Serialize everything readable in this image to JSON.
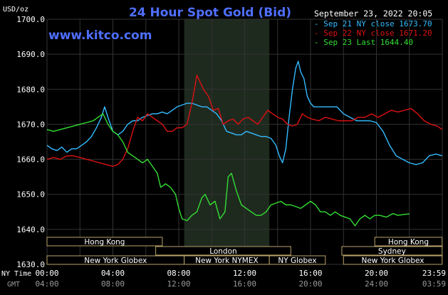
{
  "chart_data": {
    "type": "line",
    "title": "24 Hour Spot Gold (Bid)",
    "website": "www.kitco.com",
    "timestamp": "September 23, 2022 20:05",
    "y_unit": "USD/oz",
    "ylim": [
      1630,
      1700
    ],
    "y_ticks": [
      "1700.0",
      "1690.0",
      "1680.0",
      "1670.0",
      "1660.0",
      "1650.0",
      "1640.0",
      "1630.0"
    ],
    "x_range_hours": [
      0,
      24
    ],
    "x_label_ny": "NY Time",
    "x_label_gmt": "GMT",
    "x_ticks_ny": [
      "00:00",
      "04:00",
      "08:00",
      "12:00",
      "16:00",
      "20:00",
      "23:59"
    ],
    "x_ticks_gmt": [
      "04:00",
      "08:00",
      "12:00",
      "16:00",
      "20:00",
      "24:00",
      "03:59"
    ],
    "grid": true,
    "legend_position": "top-right",
    "shaded_session": {
      "start": 8.33,
      "end": 13.5,
      "color": "#1f2a1f"
    },
    "series": [
      {
        "name": "Sep 21 NY close 1673.70",
        "color": "#33bbff",
        "points": [
          [
            0,
            1664
          ],
          [
            0.3,
            1663
          ],
          [
            0.6,
            1662.5
          ],
          [
            0.9,
            1663.5
          ],
          [
            1.2,
            1662
          ],
          [
            1.5,
            1663
          ],
          [
            1.8,
            1663
          ],
          [
            2.1,
            1664
          ],
          [
            2.4,
            1665
          ],
          [
            2.7,
            1666.5
          ],
          [
            3.0,
            1669
          ],
          [
            3.3,
            1672
          ],
          [
            3.5,
            1675
          ],
          [
            3.7,
            1672
          ],
          [
            4.0,
            1668
          ],
          [
            4.3,
            1667
          ],
          [
            4.6,
            1668
          ],
          [
            4.9,
            1670
          ],
          [
            5.2,
            1671
          ],
          [
            5.5,
            1671
          ],
          [
            5.8,
            1672
          ],
          [
            6.1,
            1672.5
          ],
          [
            6.4,
            1673
          ],
          [
            6.7,
            1673
          ],
          [
            7.0,
            1673.5
          ],
          [
            7.3,
            1673
          ],
          [
            7.6,
            1674
          ],
          [
            7.9,
            1675
          ],
          [
            8.2,
            1675.5
          ],
          [
            8.5,
            1676
          ],
          [
            8.8,
            1676
          ],
          [
            9.1,
            1675.5
          ],
          [
            9.4,
            1675
          ],
          [
            9.7,
            1675
          ],
          [
            10.0,
            1674
          ],
          [
            10.3,
            1673
          ],
          [
            10.6,
            1671
          ],
          [
            10.9,
            1668
          ],
          [
            11.2,
            1667.5
          ],
          [
            11.5,
            1667
          ],
          [
            11.8,
            1667
          ],
          [
            12.1,
            1668
          ],
          [
            12.4,
            1667.5
          ],
          [
            12.7,
            1667
          ],
          [
            13.0,
            1666.5
          ],
          [
            13.3,
            1666.5
          ],
          [
            13.6,
            1666
          ],
          [
            13.9,
            1664
          ],
          [
            14.1,
            1661
          ],
          [
            14.3,
            1659
          ],
          [
            14.5,
            1663
          ],
          [
            14.7,
            1672
          ],
          [
            14.9,
            1680
          ],
          [
            15.1,
            1686
          ],
          [
            15.25,
            1688
          ],
          [
            15.4,
            1685
          ],
          [
            15.6,
            1683
          ],
          [
            15.8,
            1678
          ],
          [
            16.0,
            1676
          ],
          [
            16.2,
            1675
          ],
          [
            16.5,
            1675
          ],
          [
            16.8,
            1675
          ],
          [
            17.2,
            1675
          ],
          [
            17.6,
            1675
          ],
          [
            18.0,
            1673
          ],
          [
            18.4,
            1672
          ],
          [
            18.8,
            1671
          ],
          [
            19.2,
            1671
          ],
          [
            19.6,
            1671
          ],
          [
            20.0,
            1670.5
          ],
          [
            20.4,
            1668
          ],
          [
            20.8,
            1664
          ],
          [
            21.2,
            1661
          ],
          [
            21.6,
            1660
          ],
          [
            22.0,
            1659
          ],
          [
            22.4,
            1658.5
          ],
          [
            22.8,
            1659
          ],
          [
            23.2,
            1661
          ],
          [
            23.6,
            1661.5
          ],
          [
            23.99,
            1661
          ]
        ]
      },
      {
        "name": "Sep 22 NY close 1671.20",
        "color": "#dd1111",
        "points": [
          [
            0,
            1660
          ],
          [
            0.4,
            1660.5
          ],
          [
            0.8,
            1660
          ],
          [
            1.2,
            1661
          ],
          [
            1.6,
            1661
          ],
          [
            2.0,
            1660.5
          ],
          [
            2.4,
            1660
          ],
          [
            2.8,
            1659.5
          ],
          [
            3.2,
            1659
          ],
          [
            3.6,
            1658.5
          ],
          [
            4.0,
            1658
          ],
          [
            4.3,
            1658.5
          ],
          [
            4.6,
            1660
          ],
          [
            4.9,
            1663
          ],
          [
            5.2,
            1668
          ],
          [
            5.5,
            1672
          ],
          [
            5.8,
            1671
          ],
          [
            6.1,
            1673
          ],
          [
            6.4,
            1672
          ],
          [
            6.7,
            1671
          ],
          [
            7.0,
            1670
          ],
          [
            7.3,
            1668
          ],
          [
            7.6,
            1668
          ],
          [
            7.9,
            1669
          ],
          [
            8.2,
            1669
          ],
          [
            8.5,
            1670
          ],
          [
            8.8,
            1676
          ],
          [
            9.1,
            1684
          ],
          [
            9.3,
            1682
          ],
          [
            9.5,
            1680
          ],
          [
            9.8,
            1678
          ],
          [
            10.1,
            1674
          ],
          [
            10.4,
            1674.5
          ],
          [
            10.7,
            1670
          ],
          [
            11.0,
            1671
          ],
          [
            11.3,
            1671.5
          ],
          [
            11.6,
            1670
          ],
          [
            11.9,
            1671.5
          ],
          [
            12.2,
            1672
          ],
          [
            12.5,
            1671
          ],
          [
            12.8,
            1670
          ],
          [
            13.1,
            1672
          ],
          [
            13.4,
            1674
          ],
          [
            13.7,
            1673
          ],
          [
            14.0,
            1672
          ],
          [
            14.3,
            1671.5
          ],
          [
            14.6,
            1670
          ],
          [
            14.9,
            1669.5
          ],
          [
            15.2,
            1670
          ],
          [
            15.5,
            1673
          ],
          [
            15.8,
            1672
          ],
          [
            16.1,
            1671.5
          ],
          [
            16.5,
            1671
          ],
          [
            16.9,
            1672
          ],
          [
            17.3,
            1671.5
          ],
          [
            17.7,
            1671
          ],
          [
            18.1,
            1671
          ],
          [
            18.5,
            1671
          ],
          [
            18.9,
            1672
          ],
          [
            19.3,
            1672
          ],
          [
            19.7,
            1673
          ],
          [
            20.1,
            1672
          ],
          [
            20.5,
            1673
          ],
          [
            20.9,
            1674
          ],
          [
            21.3,
            1673.5
          ],
          [
            21.7,
            1674
          ],
          [
            22.1,
            1674.5
          ],
          [
            22.5,
            1673
          ],
          [
            22.9,
            1671
          ],
          [
            23.3,
            1670
          ],
          [
            23.7,
            1669.5
          ],
          [
            23.99,
            1668.5
          ]
        ]
      },
      {
        "name": "Sep 23 Last 1644.40",
        "color": "#33dd33",
        "points": [
          [
            0,
            1668.5
          ],
          [
            0.4,
            1668
          ],
          [
            0.8,
            1668.5
          ],
          [
            1.2,
            1669
          ],
          [
            1.6,
            1669.5
          ],
          [
            2.0,
            1670
          ],
          [
            2.4,
            1670.5
          ],
          [
            2.8,
            1671
          ],
          [
            3.1,
            1672
          ],
          [
            3.4,
            1673
          ],
          [
            3.7,
            1670
          ],
          [
            4.0,
            1668
          ],
          [
            4.3,
            1667
          ],
          [
            4.6,
            1665
          ],
          [
            4.9,
            1662
          ],
          [
            5.2,
            1661
          ],
          [
            5.5,
            1660
          ],
          [
            5.8,
            1659
          ],
          [
            6.1,
            1660
          ],
          [
            6.4,
            1658
          ],
          [
            6.7,
            1656
          ],
          [
            6.9,
            1652
          ],
          [
            7.2,
            1653
          ],
          [
            7.5,
            1652
          ],
          [
            7.8,
            1650
          ],
          [
            8.0,
            1646
          ],
          [
            8.2,
            1643
          ],
          [
            8.5,
            1642.5
          ],
          [
            8.8,
            1644
          ],
          [
            9.1,
            1645
          ],
          [
            9.4,
            1649
          ],
          [
            9.6,
            1650
          ],
          [
            9.9,
            1647
          ],
          [
            10.2,
            1648
          ],
          [
            10.5,
            1643
          ],
          [
            10.8,
            1645
          ],
          [
            11.0,
            1655
          ],
          [
            11.2,
            1656
          ],
          [
            11.5,
            1651
          ],
          [
            11.8,
            1647
          ],
          [
            12.1,
            1646
          ],
          [
            12.4,
            1645
          ],
          [
            12.7,
            1644
          ],
          [
            13.0,
            1644
          ],
          [
            13.3,
            1645
          ],
          [
            13.6,
            1647
          ],
          [
            13.9,
            1647.5
          ],
          [
            14.2,
            1648
          ],
          [
            14.5,
            1647
          ],
          [
            14.8,
            1647
          ],
          [
            15.1,
            1646.5
          ],
          [
            15.4,
            1646
          ],
          [
            15.7,
            1647
          ],
          [
            16.0,
            1648
          ],
          [
            16.3,
            1647
          ],
          [
            16.6,
            1645
          ],
          [
            16.9,
            1645
          ],
          [
            17.2,
            1644
          ],
          [
            17.5,
            1645
          ],
          [
            17.8,
            1644
          ],
          [
            18.1,
            1643.5
          ],
          [
            18.4,
            1643
          ],
          [
            18.7,
            1641
          ],
          [
            19.0,
            1643
          ],
          [
            19.3,
            1644
          ],
          [
            19.6,
            1643
          ],
          [
            19.9,
            1644
          ],
          [
            20.2,
            1644
          ],
          [
            20.6,
            1643.5
          ],
          [
            21.0,
            1644.5
          ],
          [
            21.3,
            1644
          ],
          [
            21.6,
            1644.2
          ],
          [
            22.0,
            1644.4
          ]
        ]
      }
    ],
    "session_bars": [
      {
        "label": "Hong Kong",
        "start": 0,
        "end": 7,
        "row": 0
      },
      {
        "label": "London",
        "start": 6.6,
        "end": 14.8,
        "row": 1
      },
      {
        "label": "New York Globex",
        "start": 0,
        "end": 8.33,
        "row": 2
      },
      {
        "label": "New York NYMEX",
        "start": 8.33,
        "end": 13.5,
        "row": 2
      },
      {
        "label": "NY Globex",
        "start": 13.5,
        "end": 16.9,
        "row": 2
      },
      {
        "label": "Hong Kong",
        "start": 19.9,
        "end": 23.99,
        "row": 0
      },
      {
        "label": "Sydney",
        "start": 17.9,
        "end": 23.99,
        "row": 1
      },
      {
        "label": "New York Globex",
        "start": 18.0,
        "end": 23.99,
        "row": 2
      }
    ],
    "colors": {
      "background": "#000000",
      "plot": "#000000",
      "grid": "#333333",
      "axis_text": "#ffffff",
      "title": "#4f6fff",
      "site": "#4f6fff",
      "session_fill": "#000000",
      "session_stroke": "#b9a36a",
      "session_text": "#ffffff",
      "gmt_text": "#999999"
    }
  }
}
